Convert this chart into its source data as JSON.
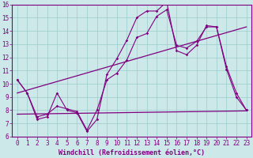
{
  "background_color": "#cce8e8",
  "line_color": "#800080",
  "grid_color": "#99cccc",
  "xlabel": "Windchill (Refroidissement éolien,°C)",
  "tick_fontsize": 5.5,
  "xlabel_fontsize": 6.0,
  "xlim": [
    -0.5,
    23.5
  ],
  "ylim": [
    6,
    16
  ],
  "yticks": [
    6,
    7,
    8,
    9,
    10,
    11,
    12,
    13,
    14,
    15,
    16
  ],
  "xticks": [
    0,
    1,
    2,
    3,
    4,
    5,
    6,
    7,
    8,
    9,
    10,
    11,
    12,
    13,
    14,
    15,
    16,
    17,
    18,
    19,
    20,
    21,
    22,
    23
  ],
  "series_main": {
    "x": [
      0,
      1,
      2,
      3,
      4,
      5,
      6,
      7,
      8,
      9,
      10,
      11,
      12,
      13,
      14,
      15,
      16,
      17,
      18,
      19,
      20,
      21,
      22,
      23
    ],
    "y": [
      10.3,
      9.3,
      7.3,
      7.5,
      9.3,
      8.0,
      7.8,
      6.4,
      7.3,
      10.7,
      11.9,
      13.3,
      15.0,
      15.5,
      15.5,
      16.2,
      12.5,
      12.2,
      12.9,
      14.4,
      14.3,
      11.1,
      9.0,
      8.0
    ]
  },
  "series_smooth": {
    "x": [
      0,
      1,
      2,
      3,
      4,
      5,
      6,
      7,
      8,
      9,
      10,
      11,
      12,
      13,
      14,
      15,
      16,
      17,
      18,
      19,
      20,
      21,
      22,
      23
    ],
    "y": [
      10.3,
      9.3,
      7.5,
      7.7,
      8.3,
      8.1,
      7.9,
      6.5,
      8.0,
      10.3,
      10.8,
      11.8,
      13.5,
      13.8,
      15.1,
      15.6,
      12.9,
      12.7,
      13.2,
      14.3,
      14.3,
      11.3,
      9.3,
      8.0
    ]
  },
  "series_flat": {
    "x": [
      0,
      23
    ],
    "y": [
      7.7,
      7.95
    ]
  },
  "series_trend": {
    "x": [
      0,
      23
    ],
    "y": [
      9.3,
      14.3
    ]
  }
}
